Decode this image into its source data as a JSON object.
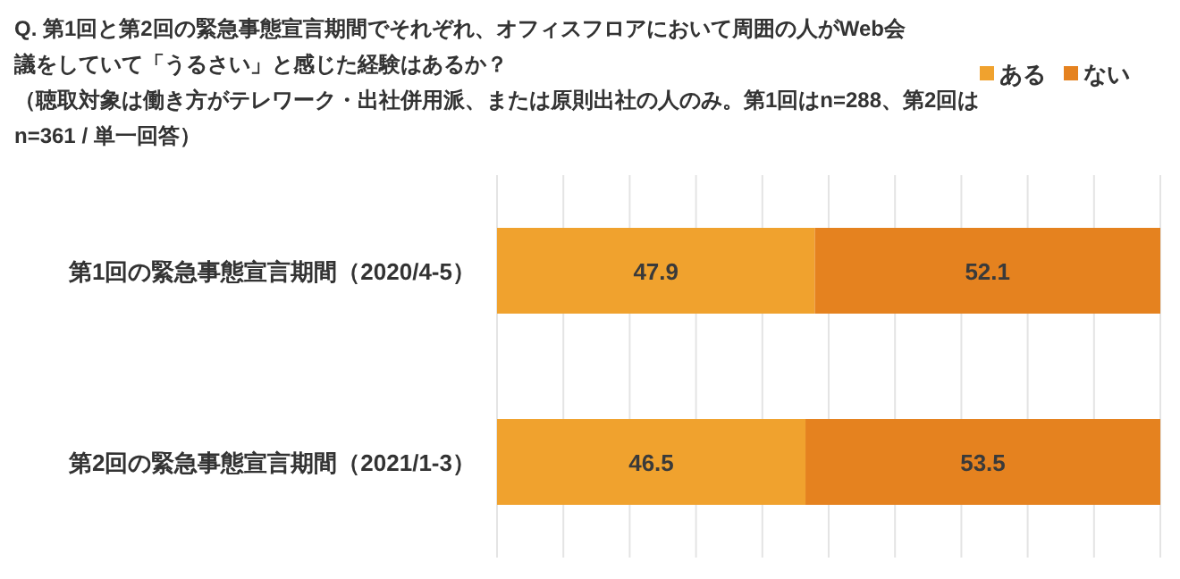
{
  "chart_data": {
    "type": "bar",
    "orientation": "horizontal",
    "stacked": true,
    "title": "Q. 第1回と第2回の緊急事態宣言期間でそれぞれ、オフィスフロアにおいて周囲の人がWeb会議をしていて「うるさい」と感じた経験はあるか？",
    "subtitle": "（聴取対象は働き方がテレワーク・出社併用派、または原則出社の人のみ。第1回はn=288、第2回はn=361 / 単一回答）",
    "categories": [
      "第1回の緊急事態宣言期間（2020/4-5）",
      "第2回の緊急事態宣言期間（2021/1-3）"
    ],
    "series": [
      {
        "name": "ある",
        "color": "#f0a22e",
        "values": [
          47.9,
          46.5
        ]
      },
      {
        "name": "ない",
        "color": "#e5821f",
        "values": [
          52.1,
          53.5
        ]
      }
    ],
    "xlim": [
      0,
      100
    ],
    "xticks": [
      {
        "value": 0,
        "label": null
      },
      {
        "value": 10,
        "label": null
      },
      {
        "value": 20,
        "label": null
      },
      {
        "value": 30,
        "label": null
      },
      {
        "value": 40,
        "label": null
      },
      {
        "value": 50,
        "label": null
      },
      {
        "value": 60,
        "label": null
      },
      {
        "value": 70,
        "label": null
      },
      {
        "value": 80,
        "label": null
      },
      {
        "value": 90,
        "label": null
      },
      {
        "value": 100,
        "label": null
      }
    ],
    "grid": "x",
    "legend": "top right",
    "data_labels": true,
    "tick_labels": "y"
  }
}
